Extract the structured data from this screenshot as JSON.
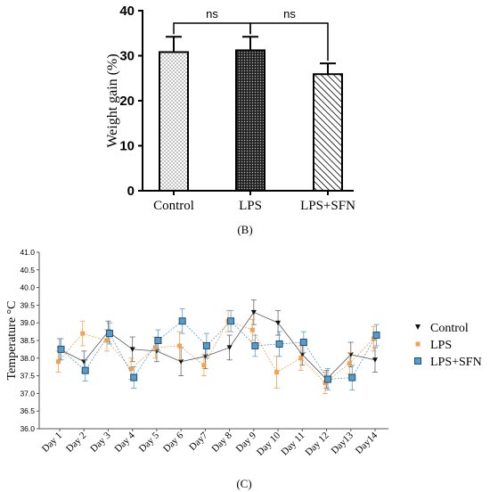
{
  "chart_data": [
    {
      "type": "bar",
      "panel_label": "(B)",
      "title": "",
      "xlabel": "",
      "ylabel": "Weight gain (%)",
      "ylim": [
        0,
        40
      ],
      "yticks": [
        0,
        10,
        20,
        30,
        40
      ],
      "grid": false,
      "categories": [
        "Control",
        "LPS",
        "LPS+SFN"
      ],
      "values": [
        30.8,
        31.2,
        25.9
      ],
      "errors": [
        3.4,
        3.0,
        2.4
      ],
      "patterns": [
        "dots",
        "dense-dots",
        "diagonal-hatch"
      ],
      "significance": [
        {
          "from": "Control",
          "to": "LPS",
          "label": "ns"
        },
        {
          "from": "LPS",
          "to": "LPS+SFN",
          "label": "ns"
        }
      ]
    },
    {
      "type": "line",
      "panel_label": "(C)",
      "title": "",
      "xlabel": "",
      "ylabel": "Temperature °C",
      "ylim": [
        36.0,
        41.0
      ],
      "yticks": [
        "36.0",
        "36.5",
        "37.0",
        "37.5",
        "38.0",
        "38.5",
        "39.0",
        "39.5",
        "40.0",
        "40.5",
        "41.0"
      ],
      "grid": false,
      "legend": "right",
      "categories": [
        "Day 1",
        "Day 2",
        "Day 3",
        "Day 4",
        "Day 5",
        "Day 6",
        "Day7",
        "Day 8",
        "Day 9",
        "Day 10",
        "Day 11",
        "Day 12",
        "Day13",
        "Day14"
      ],
      "series": [
        {
          "name": "Control",
          "marker": "triangle-down",
          "color": "#1a1a1a",
          "values": [
            38.25,
            37.9,
            38.75,
            38.25,
            38.2,
            37.9,
            38.05,
            38.3,
            39.3,
            39.0,
            38.1,
            37.4,
            38.1,
            37.95
          ],
          "errors": [
            0.3,
            0.3,
            0.3,
            0.35,
            0.3,
            0.4,
            0.35,
            0.35,
            0.35,
            0.35,
            0.3,
            0.25,
            0.35,
            0.35
          ]
        },
        {
          "name": "LPS",
          "marker": "square",
          "color": "#f5a04a",
          "values": [
            37.9,
            38.7,
            38.5,
            37.7,
            38.3,
            38.35,
            37.8,
            39.05,
            38.8,
            37.6,
            38.0,
            37.3,
            37.85,
            38.55
          ],
          "errors": [
            0.3,
            0.35,
            0.3,
            0.3,
            0.3,
            0.4,
            0.3,
            0.3,
            0.3,
            0.45,
            0.35,
            0.3,
            0.3,
            0.35
          ]
        },
        {
          "name": "LPS+SFN",
          "marker": "square",
          "color": "#5b9bc8",
          "values": [
            38.25,
            37.65,
            38.7,
            37.45,
            38.5,
            39.05,
            38.35,
            39.05,
            38.35,
            38.4,
            38.45,
            37.4,
            37.45,
            38.65
          ],
          "errors": [
            0.3,
            0.3,
            0.3,
            0.3,
            0.3,
            0.35,
            0.35,
            0.3,
            0.3,
            0.35,
            0.3,
            0.3,
            0.35,
            0.3
          ]
        }
      ]
    }
  ]
}
